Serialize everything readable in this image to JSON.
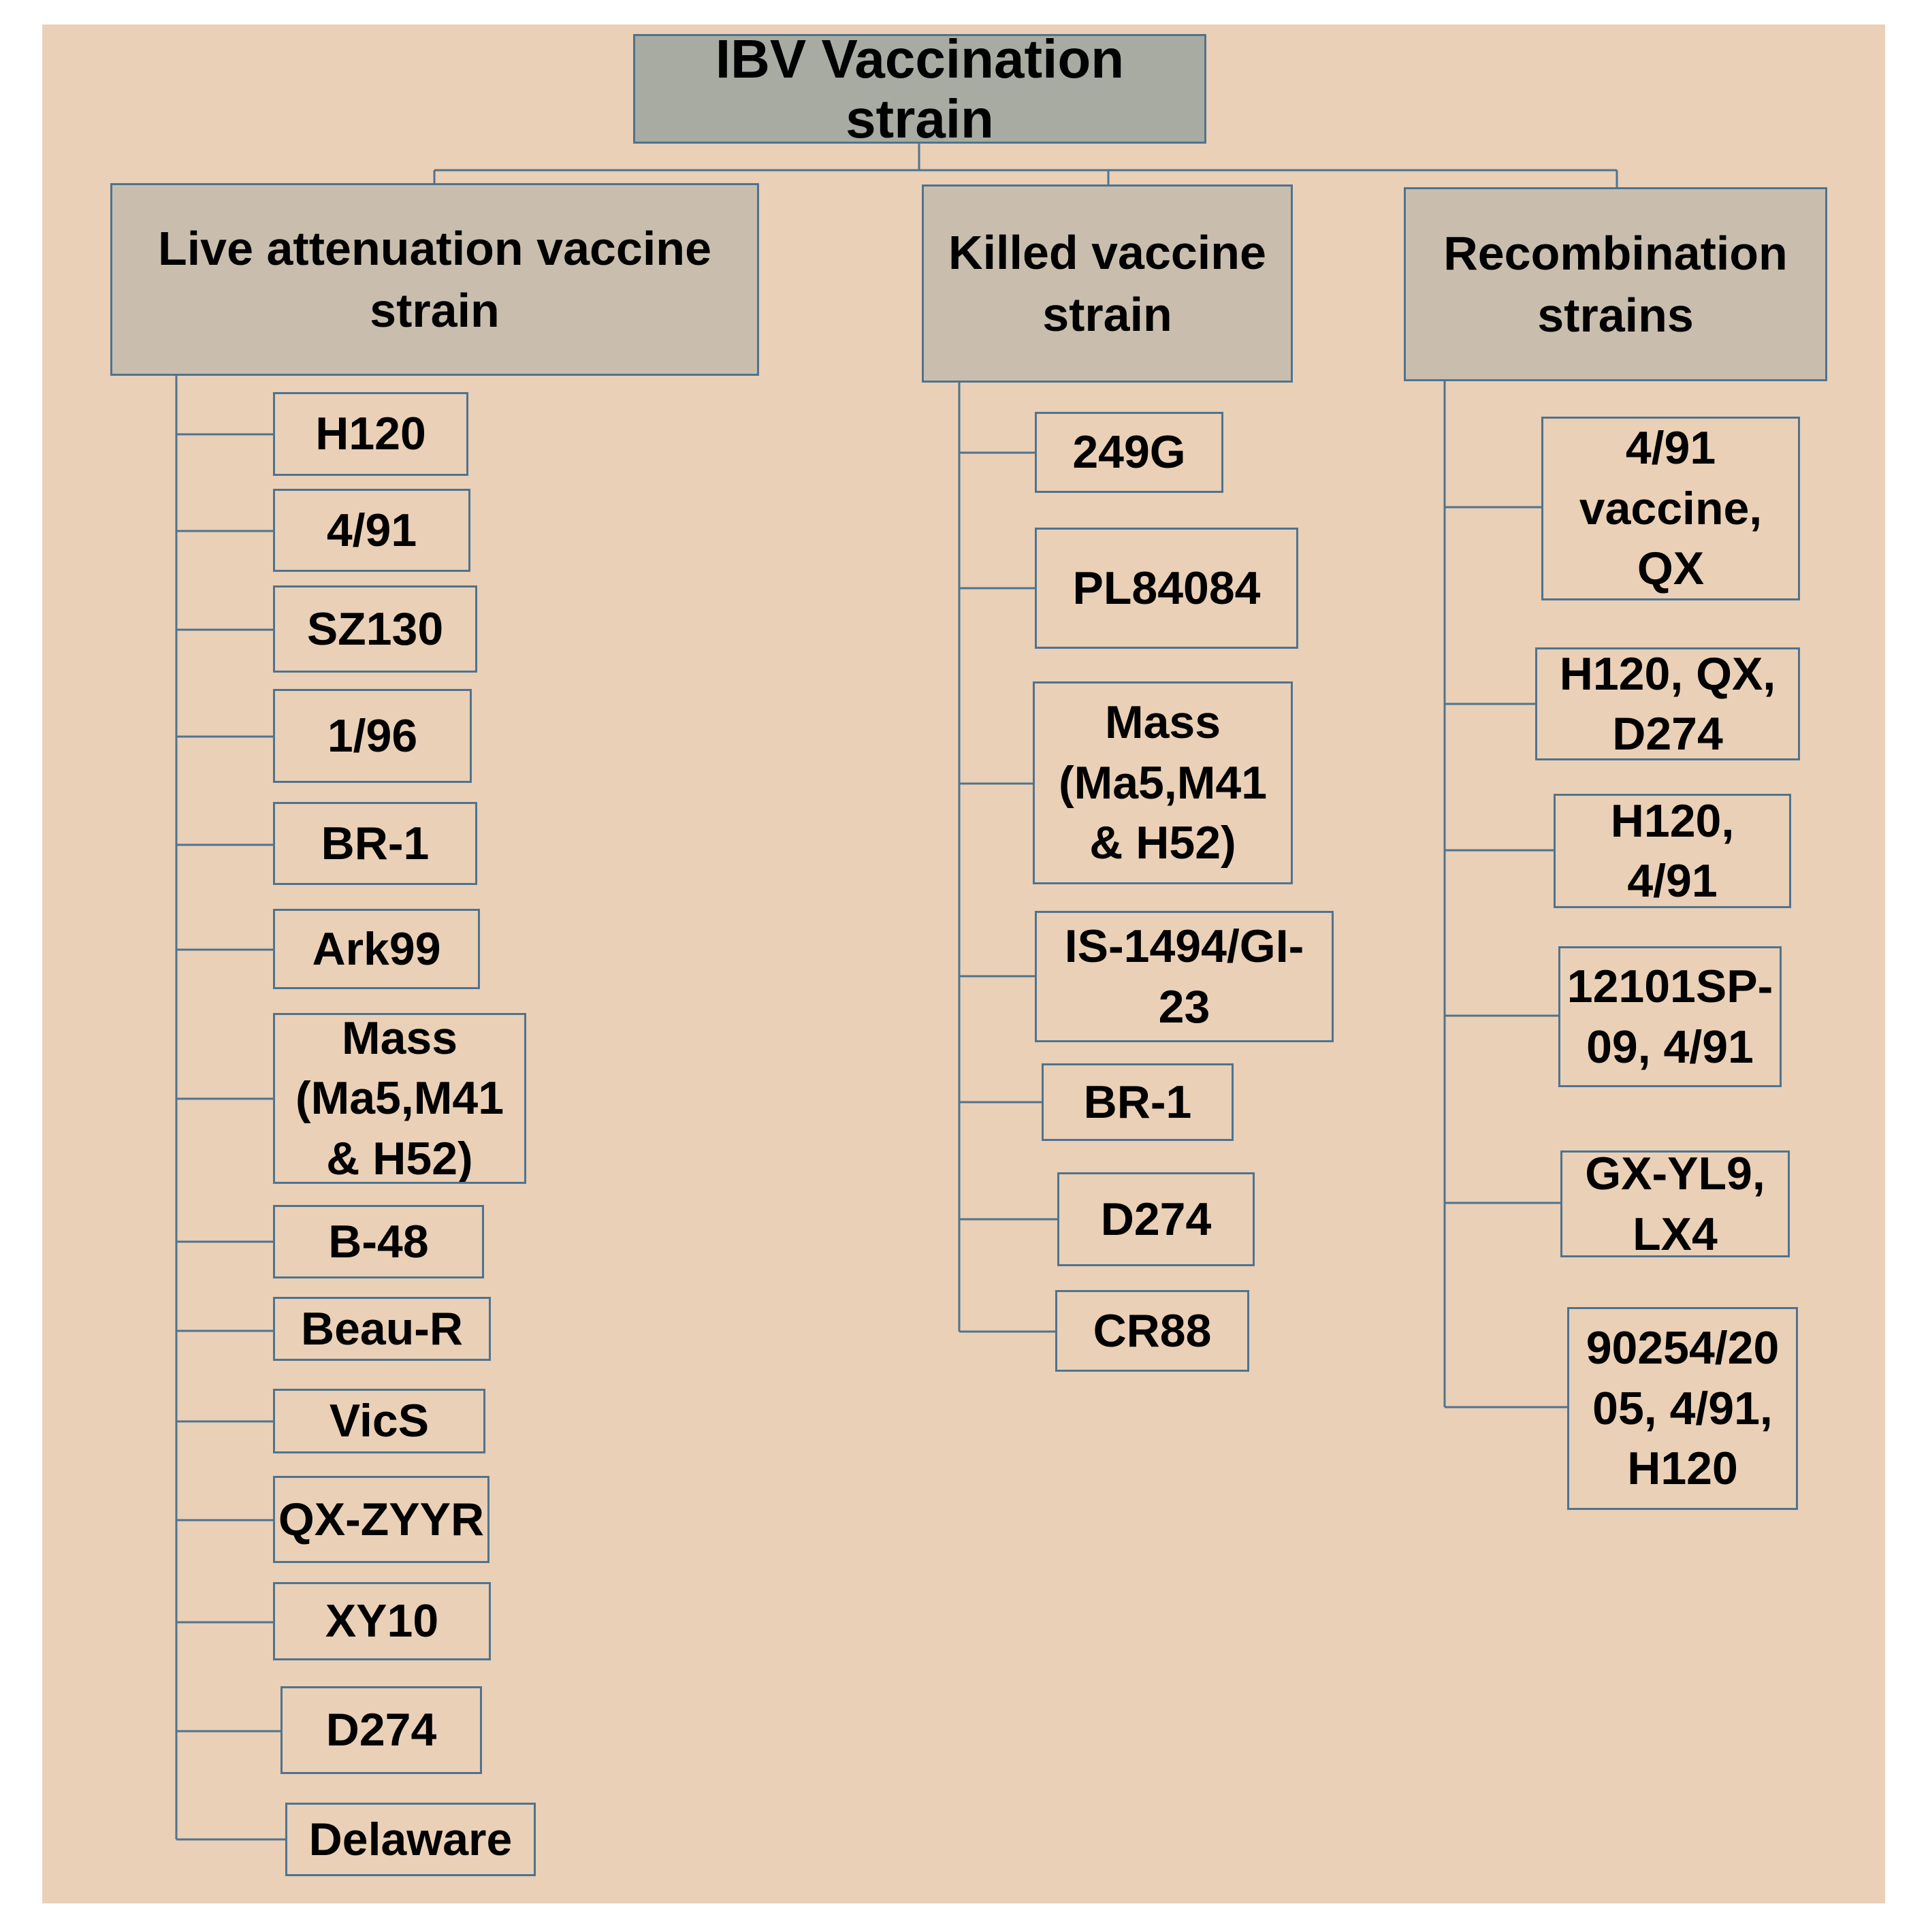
{
  "title": "IBV Vaccination strain",
  "categories": [
    {
      "label": "Live attenuation vaccine\nstrain",
      "items": [
        "H120",
        "4/91",
        "SZ130",
        "1/96",
        "BR-1",
        "Ark99",
        "Mass\n(Ma5,M41\n& H52)",
        "B-48",
        "Beau-R",
        "VicS",
        "QX-ZYYR",
        "XY10",
        "D274",
        "Delaware"
      ]
    },
    {
      "label": "Killed vaccine\nstrain",
      "items": [
        "249G",
        "PL84084",
        "Mass\n(Ma5,M41\n& H52)",
        "IS-1494/GI-\n23",
        "BR-1",
        "D274",
        "CR88"
      ]
    },
    {
      "label": "Recombination\nstrains",
      "items": [
        "4/91\nvaccine,\nQX",
        "H120, QX,\nD274",
        "H120,\n4/91",
        "12101SP-\n09, 4/91",
        "GX-YL9,\nLX4",
        "90254/20\n05, 4/91,\nH120"
      ]
    }
  ],
  "colors": {
    "background": "#ead0b6",
    "root_fill": "#a8aba2",
    "category_fill": "#c9beae",
    "border": "#4f7390",
    "connector": "#4f7390"
  }
}
